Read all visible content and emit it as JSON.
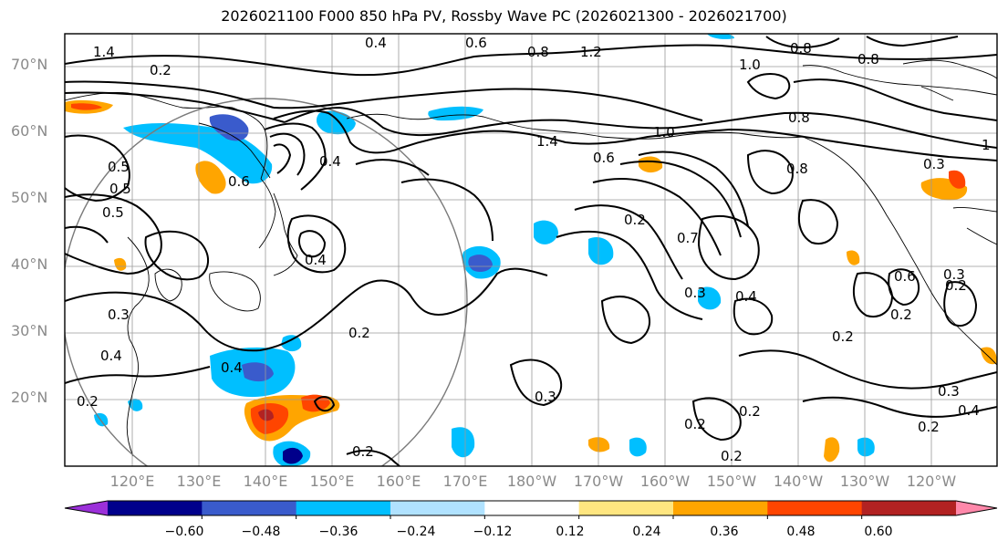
{
  "title": "2026021100 F000 850 hPa PV, Rossby Wave PC (2026021300 - 2026021700)",
  "lat_labels": [
    "70°N",
    "60°N",
    "50°N",
    "40°N",
    "30°N",
    "20°N"
  ],
  "lon_labels": [
    "120°E",
    "130°E",
    "140°E",
    "150°E",
    "160°E",
    "170°E",
    "180°W",
    "170°W",
    "160°W",
    "150°W",
    "140°W",
    "130°W",
    "120°W"
  ],
  "colorbar": {
    "ticks": [
      "−0.60",
      "−0.48",
      "−0.36",
      "−0.24",
      "−0.12",
      "0.12",
      "0.24",
      "0.36",
      "0.48",
      "0.60"
    ],
    "colors": [
      "#9b30d9",
      "#00008b",
      "#3a5bcc",
      "#00bfff",
      "#b0e2ff",
      "#ffffff",
      "#ffe680",
      "#ffa500",
      "#ff4500",
      "#b22222",
      "#ff88aa"
    ]
  },
  "contour_labels": [
    "1.4",
    "0.4",
    "0.6",
    "0.8",
    "1.2",
    "0.8",
    "1.0",
    "1",
    "0.3",
    "0.5",
    "0.6",
    "0.4",
    "0.2",
    "0.3",
    "0.2",
    "0.3",
    "0.2",
    "0.4",
    "0.2",
    "0.4",
    "0.3",
    "0.2",
    "0.2",
    "0.7",
    "0.3",
    "0.4",
    "0.5",
    "0.6",
    "0.2",
    "0.2",
    "0.3",
    "0.4",
    "0.2",
    "0.2",
    "0.2",
    "0.2",
    "0.5",
    "0.4",
    "0.8",
    "1.0",
    "1.4",
    "0.6",
    "0.8",
    "0.8"
  ]
}
